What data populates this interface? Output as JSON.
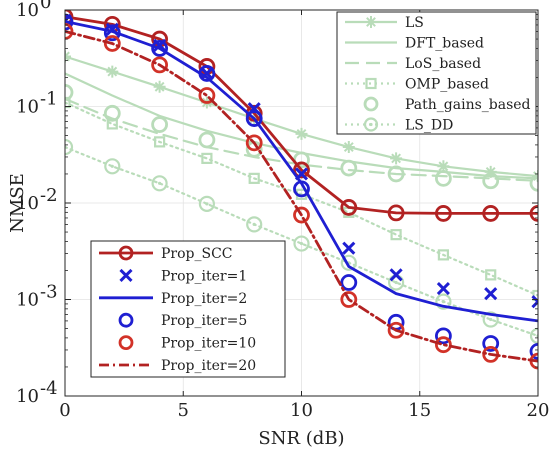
{
  "chart_data": {
    "type": "line",
    "xlabel": "SNR (dB)",
    "ylabel": "NMSE",
    "xlim": [
      0,
      20
    ],
    "ylim": [
      0.0001,
      1
    ],
    "yscale": "log",
    "x_ticks": [
      0,
      5,
      10,
      15,
      20
    ],
    "x_tick_labels": [
      "0",
      "5",
      "10",
      "15",
      "20"
    ],
    "y_ticks": [
      0.0001,
      0.001,
      0.01,
      0.1,
      1
    ],
    "y_tick_labels": [
      {
        "base": "10",
        "exp": "-4"
      },
      {
        "base": "10",
        "exp": "-3"
      },
      {
        "base": "10",
        "exp": "-2"
      },
      {
        "base": "10",
        "exp": "-1"
      },
      {
        "base": "10",
        "exp": "0"
      }
    ],
    "grid": true,
    "legends": [
      {
        "placement": "top-right",
        "entries": [
          "LS",
          "DFT_based",
          "LoS_based",
          "OMP_based",
          "Path_gains_based",
          "LS_DD"
        ]
      },
      {
        "placement": "bottom-left",
        "entries": [
          "Prop_SCC",
          "Prop_iter=1",
          "Prop_iter=2",
          "Prop_iter=5",
          "Prop_iter=10",
          "Prop_iter=20"
        ]
      }
    ],
    "series": [
      {
        "name": "LS",
        "color": "#b9dcb9",
        "line": "solid",
        "marker": "asterisk",
        "x": [
          0,
          2,
          4,
          6,
          8,
          10,
          12,
          14,
          16,
          18,
          20
        ],
        "y": [
          0.33,
          0.23,
          0.16,
          0.11,
          0.075,
          0.052,
          0.038,
          0.029,
          0.024,
          0.021,
          0.019
        ]
      },
      {
        "name": "DFT_based",
        "color": "#b9dcb9",
        "line": "solid",
        "marker": "none",
        "x": [
          0,
          2,
          4,
          6,
          8,
          10,
          12,
          14,
          16,
          18,
          20
        ],
        "y": [
          0.22,
          0.13,
          0.08,
          0.056,
          0.042,
          0.033,
          0.027,
          0.023,
          0.021,
          0.019,
          0.018
        ]
      },
      {
        "name": "LoS_based",
        "color": "#b9dcb9",
        "line": "dashed",
        "marker": "none",
        "x": [
          0,
          2,
          4,
          6,
          8,
          10,
          12,
          14,
          16,
          18,
          20
        ],
        "y": [
          0.12,
          0.075,
          0.052,
          0.038,
          0.03,
          0.025,
          0.022,
          0.02,
          0.019,
          0.018,
          0.017
        ]
      },
      {
        "name": "OMP_based",
        "color": "#b9dcb9",
        "line": "dotted",
        "marker": "square",
        "x": [
          0,
          2,
          4,
          6,
          8,
          10,
          12,
          14,
          16,
          18,
          20
        ],
        "y": [
          0.11,
          0.066,
          0.043,
          0.029,
          0.018,
          0.0123,
          0.008,
          0.0047,
          0.0029,
          0.0018,
          0.0011
        ]
      },
      {
        "name": "Path_gains_based",
        "color": "#b9dcb9",
        "line": "none",
        "marker": "circle",
        "x": [
          0,
          2,
          4,
          6,
          8,
          10,
          12,
          14,
          16,
          18,
          20
        ],
        "y": [
          0.14,
          0.085,
          0.065,
          0.045,
          0.036,
          0.028,
          0.023,
          0.02,
          0.018,
          0.017,
          0.016
        ]
      },
      {
        "name": "LS_DD",
        "color": "#b9dcb9",
        "line": "dotted",
        "marker": "circle-dot",
        "x": [
          0,
          2,
          4,
          6,
          8,
          10,
          12,
          14,
          16,
          18,
          20
        ],
        "y": [
          0.038,
          0.024,
          0.016,
          0.0098,
          0.006,
          0.0038,
          0.0024,
          0.0015,
          0.00095,
          0.00062,
          0.00042
        ]
      },
      {
        "name": "Prop_SCC",
        "color": "#b22222",
        "line": "solid",
        "marker": "circle",
        "x": [
          0,
          2,
          4,
          6,
          8,
          10,
          12,
          14,
          16,
          18,
          20
        ],
        "y": [
          0.85,
          0.71,
          0.5,
          0.26,
          0.085,
          0.022,
          0.009,
          0.0079,
          0.0078,
          0.0078,
          0.0078
        ]
      },
      {
        "name": "Prop_iter=1",
        "color": "#1f1fd2",
        "line": "none",
        "marker": "x",
        "x": [
          0,
          2,
          4,
          6,
          8,
          10,
          12,
          14,
          16,
          18,
          20
        ],
        "y": [
          0.78,
          0.63,
          0.43,
          0.22,
          0.095,
          0.02,
          0.0034,
          0.0018,
          0.0013,
          0.00115,
          0.00095
        ]
      },
      {
        "name": "Prop_iter=2",
        "color": "#1f1fd2",
        "line": "solid",
        "marker": "none",
        "x": [
          0,
          2,
          4,
          6,
          8,
          10,
          12,
          14,
          16,
          18,
          20
        ],
        "y": [
          0.76,
          0.6,
          0.4,
          0.2,
          0.075,
          0.016,
          0.0022,
          0.00115,
          0.00085,
          0.0007,
          0.0006
        ]
      },
      {
        "name": "Prop_iter=5",
        "color": "#1f1fd2",
        "line": "none",
        "marker": "circle",
        "x": [
          0,
          2,
          4,
          6,
          8,
          10,
          12,
          14,
          16,
          18,
          20
        ],
        "y": [
          0.75,
          0.58,
          0.4,
          0.22,
          0.075,
          0.014,
          0.0015,
          0.00058,
          0.00042,
          0.00035,
          0.00029
        ]
      },
      {
        "name": "Prop_iter=10",
        "color": "#d23228",
        "line": "none",
        "marker": "circle",
        "x": [
          0,
          2,
          4,
          6,
          8,
          10,
          12,
          14,
          16,
          18,
          20
        ],
        "y": [
          0.6,
          0.45,
          0.27,
          0.13,
          0.042,
          0.0075,
          0.001,
          0.00048,
          0.00034,
          0.00027,
          0.00023
        ]
      },
      {
        "name": "Prop_iter=20",
        "color": "#b22222",
        "line": "dashdot",
        "marker": "none",
        "x": [
          0,
          2,
          4,
          6,
          8,
          10,
          12,
          14,
          16,
          18,
          20
        ],
        "y": [
          0.6,
          0.45,
          0.27,
          0.13,
          0.042,
          0.0075,
          0.001,
          0.00048,
          0.00034,
          0.00027,
          0.00023
        ]
      }
    ]
  }
}
